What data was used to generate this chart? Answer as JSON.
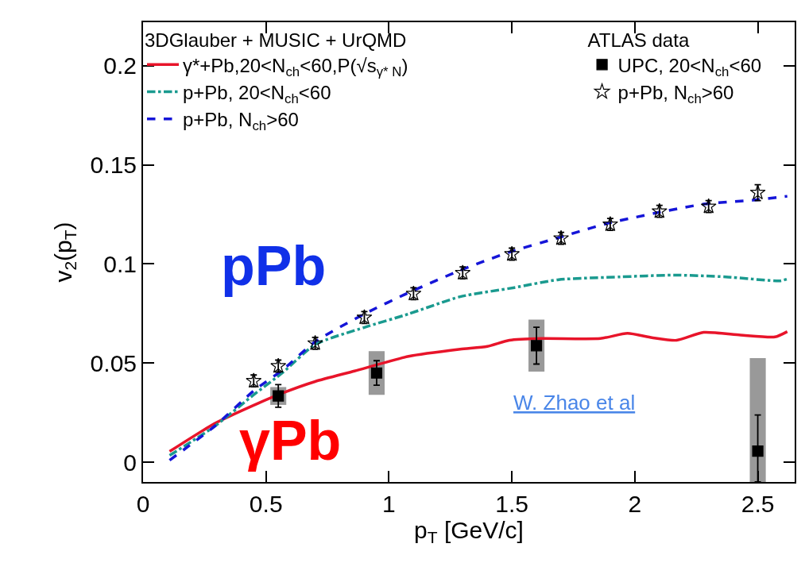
{
  "chart_data": {
    "type": "line",
    "xlabel": "p$_{T}$ [GeV/c]",
    "ylabel": "v$_{2}$(p$_{T}$)",
    "legend_title": [
      "3DGlauber + MUSIC + UrQMD",
      "ATLAS data"
    ],
    "legend": "top",
    "xlim": [
      0,
      2.65
    ],
    "xticks": [
      0,
      0.5,
      1,
      1.5,
      2,
      2.5
    ],
    "ylim": [
      -0.01,
      0.222
    ],
    "yticks": [
      0,
      0.05,
      0.1,
      0.15,
      0.2
    ],
    "series": [
      {
        "name": "γ*+Pb,20<N$_{ch}$<60,P(√s$_{γ* N}$)",
        "color": "#e8142a",
        "line_style": "solid",
        "x": [
          0.108,
          0.29,
          0.45,
          0.57,
          0.7,
          0.86,
          1.08,
          1.29,
          1.4,
          1.49,
          1.62,
          1.86,
          1.97,
          2.07,
          2.17,
          2.28,
          2.43,
          2.57,
          2.62
        ],
        "values": [
          0.0054,
          0.0194,
          0.0287,
          0.035,
          0.0407,
          0.046,
          0.0534,
          0.057,
          0.0584,
          0.0615,
          0.0624,
          0.0624,
          0.065,
          0.0628,
          0.0615,
          0.0655,
          0.0641,
          0.0632,
          0.0659
        ]
      },
      {
        "name": "p+Pb, 20<N$_{ch}$<60",
        "color": "#1a9a8f",
        "line_style": "dashdot",
        "x": [
          0.108,
          0.29,
          0.45,
          0.57,
          0.7,
          0.9,
          1.08,
          1.29,
          1.51,
          1.69,
          1.94,
          2.16,
          2.37,
          2.59,
          2.62
        ],
        "values": [
          0.0034,
          0.018,
          0.034,
          0.0454,
          0.0594,
          0.068,
          0.0748,
          0.0835,
          0.0881,
          0.0921,
          0.0935,
          0.0944,
          0.0935,
          0.0915,
          0.0924
        ]
      },
      {
        "name": "p+Pb, N$_{ch}$>60",
        "color": "#1515d8",
        "line_style": "dashed",
        "x": [
          0.108,
          0.29,
          0.45,
          0.57,
          0.7,
          0.9,
          1.09,
          1.29,
          1.49,
          1.68,
          1.88,
          2.08,
          2.28,
          2.48,
          2.62
        ],
        "values": [
          0.001,
          0.018,
          0.036,
          0.0468,
          0.0608,
          0.0748,
          0.0861,
          0.0968,
          0.106,
          0.1129,
          0.1202,
          0.1256,
          0.1302,
          0.1322,
          0.1342
        ]
      },
      {
        "type": "bar",
        "color": "#999999",
        "x": [
          0.55,
          0.95,
          1.6,
          2.5
        ],
        "base": [
          0.0289,
          0.034,
          0.0457,
          -0.01
        ],
        "values": [
          0.009,
          0.022,
          0.0262,
          0.0625
        ]
      },
      {
        "name": "UPC, 20<N$_{ch}$<60",
        "type": "scatter",
        "color": "#000000",
        "marker": "square",
        "x": [
          0.55,
          0.95,
          1.6,
          2.5
        ],
        "values": [
          0.0334,
          0.045,
          0.0588,
          0.0056
        ],
        "errors": [
          0.0057,
          0.0062,
          0.0093,
          [
            -0.01,
            0.0238
          ]
        ]
      },
      {
        "name": "p+Pb, N$_{ch}$>60",
        "type": "scatter",
        "color": "#000000",
        "marker": "star",
        "x": [
          0.45,
          0.55,
          0.7,
          0.9,
          1.1,
          1.3,
          1.5,
          1.7,
          1.9,
          2.1,
          2.3,
          2.5
        ],
        "values": [
          0.041,
          0.0485,
          0.06,
          0.073,
          0.085,
          0.0955,
          0.105,
          0.113,
          0.12,
          0.1266,
          0.129,
          0.136
        ],
        "errors": [
          0.003,
          0.003,
          0.003,
          0.003,
          0.003,
          0.003,
          0.003,
          0.003,
          0.003,
          0.003,
          0.003,
          0.004
        ]
      }
    ],
    "annotations": [
      "pPb",
      "γPb",
      "W. Zhao et al"
    ]
  }
}
